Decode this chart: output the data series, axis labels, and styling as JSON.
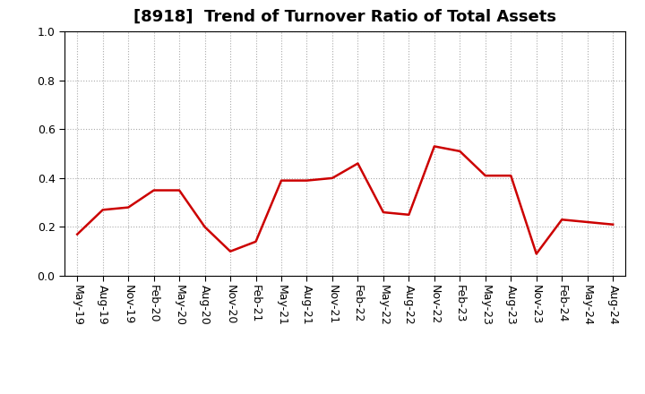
{
  "title": "[8918]  Trend of Turnover Ratio of Total Assets",
  "x_labels": [
    "May-19",
    "Aug-19",
    "Nov-19",
    "Feb-20",
    "May-20",
    "Aug-20",
    "Nov-20",
    "Feb-21",
    "May-21",
    "Aug-21",
    "Nov-21",
    "Feb-22",
    "May-22",
    "Aug-22",
    "Nov-22",
    "Feb-23",
    "May-23",
    "Aug-23",
    "Nov-23",
    "Feb-24",
    "May-24",
    "Aug-24"
  ],
  "y_values": [
    0.17,
    0.27,
    0.28,
    0.35,
    0.35,
    0.2,
    0.1,
    0.14,
    0.39,
    0.39,
    0.4,
    0.46,
    0.26,
    0.25,
    0.53,
    0.51,
    0.41,
    0.41,
    0.09,
    0.23,
    0.22,
    0.21
  ],
  "line_color": "#cc0000",
  "line_width": 1.8,
  "ylim": [
    0.0,
    1.0
  ],
  "yticks": [
    0.0,
    0.2,
    0.4,
    0.6,
    0.8,
    1.0
  ],
  "title_fontsize": 13,
  "tick_fontsize": 9,
  "bg_color": "#ffffff",
  "grid_color": "#aaaaaa",
  "spine_color": "#000000"
}
